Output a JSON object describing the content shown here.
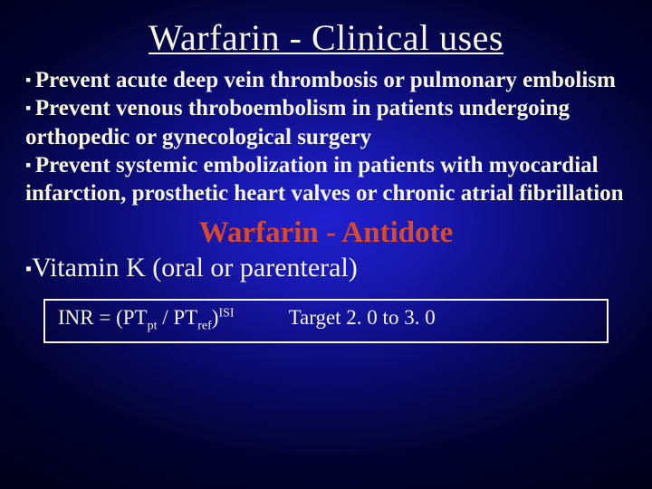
{
  "title": "Warfarin - Clinical uses",
  "bullets": [
    "Prevent acute deep vein thrombosis or pulmonary embolism",
    "Prevent venous throboembolism in patients undergoing orthopedic or gynecological surgery",
    "Prevent systemic embolization in patients with myocardial infarction, prosthetic heart valves or chronic atrial fibrillation"
  ],
  "subtitle": "Warfarin - Antidote",
  "antidote": "Vitamin K (oral or parenteral)",
  "formula": {
    "lhs": "INR = (PT",
    "sub1": "pt",
    "mid": " / PT",
    "sub2": "ref",
    "rparen": ")",
    "sup": "ISI"
  },
  "target": "Target 2. 0 to 3. 0",
  "colors": {
    "text": "#f5f5dc",
    "accent": "#d94a2a",
    "bg_inner": "#2020d0",
    "bg_outer": "#000018"
  },
  "fonts": {
    "title_size_pt": 40,
    "body_size_pt": 25,
    "subtitle_size_pt": 33,
    "antidote_size_pt": 30,
    "formula_size_pt": 23
  }
}
